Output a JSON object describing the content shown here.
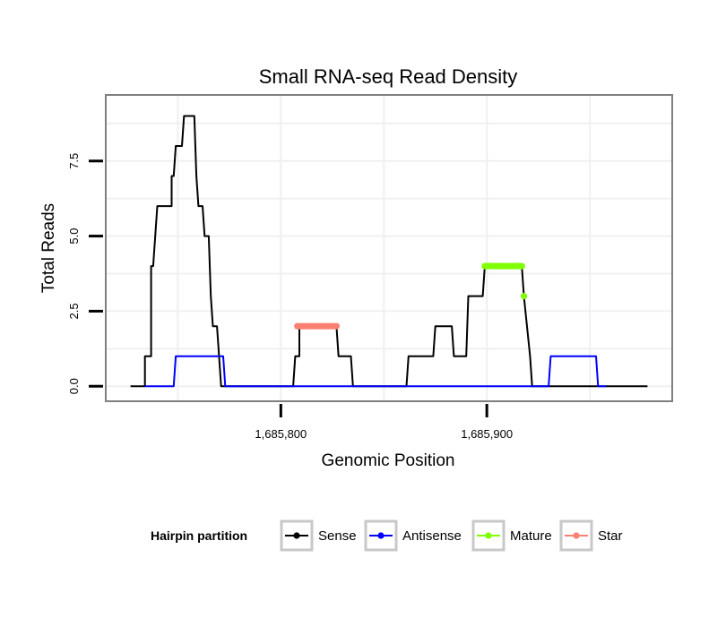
{
  "chart_data": {
    "type": "line",
    "title": "Small RNA-seq Read Density",
    "xlabel": "Genomic Position",
    "ylabel": "Total Reads",
    "xlim": [
      1685715,
      1685990
    ],
    "ylim": [
      -0.5,
      9.7
    ],
    "x_ticks": [
      1685800,
      1685900
    ],
    "x_tick_labels": [
      "1,685,800",
      "1,685,900"
    ],
    "y_ticks": [
      0,
      2.5,
      5,
      7.5
    ],
    "y_tick_labels": [
      "0.0",
      "2.5",
      "5.0",
      "7.5"
    ],
    "grid": true,
    "legend_position": "bottom",
    "legend_title": "Hairpin partition",
    "series": [
      {
        "name": "Sense",
        "color": "#000000",
        "style": "line",
        "points": [
          [
            1685727,
            0
          ],
          [
            1685734,
            0
          ],
          [
            1685734,
            1
          ],
          [
            1685737,
            1
          ],
          [
            1685737,
            4
          ],
          [
            1685738,
            4
          ],
          [
            1685739,
            5
          ],
          [
            1685740,
            6
          ],
          [
            1685747,
            6
          ],
          [
            1685747,
            7
          ],
          [
            1685748,
            7
          ],
          [
            1685749,
            8
          ],
          [
            1685752,
            8
          ],
          [
            1685753,
            9
          ],
          [
            1685758,
            9
          ],
          [
            1685759,
            7
          ],
          [
            1685760,
            6
          ],
          [
            1685762,
            6
          ],
          [
            1685763,
            5
          ],
          [
            1685765,
            5
          ],
          [
            1685766,
            3
          ],
          [
            1685767,
            2
          ],
          [
            1685769,
            2
          ],
          [
            1685771,
            0
          ],
          [
            1685806,
            0
          ],
          [
            1685807,
            1
          ],
          [
            1685809,
            1
          ],
          [
            1685809,
            2
          ],
          [
            1685827,
            2
          ],
          [
            1685828,
            1
          ],
          [
            1685834,
            1
          ],
          [
            1685835,
            0
          ],
          [
            1685861,
            0
          ],
          [
            1685862,
            1
          ],
          [
            1685874,
            1
          ],
          [
            1685875,
            2
          ],
          [
            1685883,
            2
          ],
          [
            1685884,
            1
          ],
          [
            1685890,
            1
          ],
          [
            1685891,
            3
          ],
          [
            1685897,
            3
          ],
          [
            1685898,
            3
          ],
          [
            1685899,
            4
          ],
          [
            1685917,
            4
          ],
          [
            1685918,
            3
          ],
          [
            1685921,
            1
          ],
          [
            1685922,
            0
          ],
          [
            1685978,
            0
          ]
        ]
      },
      {
        "name": "Antisense",
        "color": "#0000ff",
        "style": "line",
        "points": [
          [
            1685734,
            0
          ],
          [
            1685748,
            0
          ],
          [
            1685749,
            1
          ],
          [
            1685772,
            1
          ],
          [
            1685773,
            0
          ],
          [
            1685785,
            0
          ],
          [
            1685930,
            0
          ],
          [
            1685931,
            1
          ],
          [
            1685953,
            1
          ],
          [
            1685954,
            0
          ],
          [
            1685958,
            0
          ]
        ]
      },
      {
        "name": "Mature",
        "color": "#7fff00",
        "style": "points",
        "points": [
          [
            1685899,
            4
          ],
          [
            1685900,
            4
          ],
          [
            1685901,
            4
          ],
          [
            1685902,
            4
          ],
          [
            1685903,
            4
          ],
          [
            1685904,
            4
          ],
          [
            1685905,
            4
          ],
          [
            1685906,
            4
          ],
          [
            1685907,
            4
          ],
          [
            1685908,
            4
          ],
          [
            1685909,
            4
          ],
          [
            1685910,
            4
          ],
          [
            1685911,
            4
          ],
          [
            1685912,
            4
          ],
          [
            1685913,
            4
          ],
          [
            1685914,
            4
          ],
          [
            1685915,
            4
          ],
          [
            1685916,
            4
          ],
          [
            1685917,
            4
          ],
          [
            1685918,
            3
          ]
        ]
      },
      {
        "name": "Star",
        "color": "#fa8072",
        "style": "points",
        "points": [
          [
            1685808,
            2
          ],
          [
            1685809,
            2
          ],
          [
            1685810,
            2
          ],
          [
            1685811,
            2
          ],
          [
            1685812,
            2
          ],
          [
            1685813,
            2
          ],
          [
            1685814,
            2
          ],
          [
            1685815,
            2
          ],
          [
            1685816,
            2
          ],
          [
            1685817,
            2
          ],
          [
            1685818,
            2
          ],
          [
            1685819,
            2
          ],
          [
            1685820,
            2
          ],
          [
            1685821,
            2
          ],
          [
            1685822,
            2
          ],
          [
            1685823,
            2
          ],
          [
            1685824,
            2
          ],
          [
            1685825,
            2
          ],
          [
            1685826,
            2
          ],
          [
            1685827,
            2
          ]
        ]
      }
    ]
  }
}
